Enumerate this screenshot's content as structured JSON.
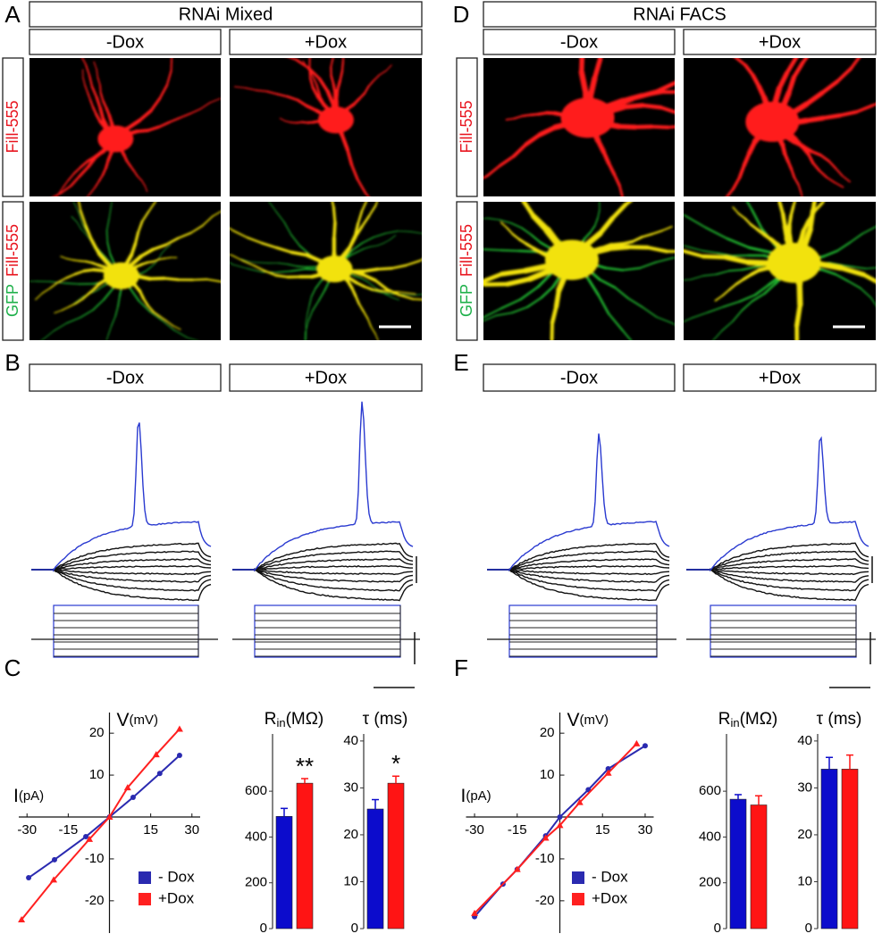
{
  "figure": {
    "panel_labels": [
      "A",
      "B",
      "C",
      "D",
      "E",
      "F"
    ],
    "left_header": "RNAi Mixed",
    "right_header": "RNAi FACS",
    "conditions": [
      "-Dox",
      "+Dox"
    ],
    "row_labels": {
      "fill": "Fill-555",
      "gfp": "GFP"
    }
  },
  "chart_data": [
    {
      "type": "scatter",
      "x_label": [
        "I",
        "(pA)"
      ],
      "y_label": [
        "V",
        "(mV)"
      ],
      "xlim": [
        -33,
        33
      ],
      "ylim": [
        -26,
        26
      ],
      "xticks": [
        -30,
        -15,
        15,
        30
      ],
      "yticks": [
        -20,
        -10,
        10,
        20
      ],
      "series": [
        {
          "name": "- Dox",
          "color": "#2a2ab0",
          "marker": "circle",
          "x": [
            -29.4,
            -20,
            -8.6,
            0,
            8.6,
            18.3,
            25.5
          ],
          "values": [
            -14.5,
            -10.2,
            -4.7,
            0,
            4.7,
            10.4,
            14.7
          ]
        },
        {
          "name": "+Dox",
          "color": "#ff2020",
          "marker": "triangle",
          "x": [
            -32,
            -20.3,
            -7.3,
            0,
            6.6,
            17,
            25.5
          ],
          "values": [
            -24.5,
            -15,
            -5.3,
            0,
            7,
            14.9,
            21
          ]
        }
      ]
    },
    {
      "type": "bar",
      "title": [
        "R",
        "in",
        "(MΩ)"
      ],
      "values": [
        490,
        635
      ],
      "errors": [
        35,
        20
      ],
      "colors": [
        "#0c0ccc",
        "#ff1414"
      ],
      "value_annotations": [
        null,
        "**"
      ],
      "ylim": [
        0,
        850
      ],
      "yticks": [
        0,
        200,
        400,
        600
      ]
    },
    {
      "type": "bar",
      "title": [
        "τ",
        " (ms)"
      ],
      "values": [
        25.5,
        31
      ],
      "errors": [
        2,
        1.5
      ],
      "colors": [
        "#0c0ccc",
        "#ff1414"
      ],
      "value_annotations": [
        null,
        "*"
      ],
      "ylim": [
        0,
        41.5
      ],
      "yticks": [
        0,
        10,
        20,
        30,
        40
      ]
    },
    {
      "type": "scatter",
      "x_label": [
        "I",
        "(pA)"
      ],
      "y_label": [
        "V",
        "(mV)"
      ],
      "xlim": [
        -33,
        33
      ],
      "ylim": [
        -26,
        26
      ],
      "xticks": [
        -30,
        -15,
        15,
        30
      ],
      "yticks": [
        -20,
        -10,
        10,
        20
      ],
      "series": [
        {
          "name": "- Dox",
          "color": "#2a2ab0",
          "marker": "circle",
          "x": [
            -30,
            -20,
            -15,
            -5,
            0,
            10,
            17,
            30
          ],
          "values": [
            -23.8,
            -16,
            -12.5,
            -4.5,
            0,
            6.5,
            11.5,
            17
          ]
        },
        {
          "name": "+Dox",
          "color": "#ff2020",
          "marker": "triangle",
          "x": [
            -30,
            -15,
            -5,
            0,
            7,
            17,
            27
          ],
          "values": [
            -23,
            -12.5,
            -5,
            -2,
            3.5,
            10.5,
            17.5
          ]
        }
      ]
    },
    {
      "type": "bar",
      "title": [
        "R",
        "in",
        "(MΩ)"
      ],
      "values": [
        565,
        540
      ],
      "errors": [
        20,
        40
      ],
      "colors": [
        "#0c0ccc",
        "#ff1414"
      ],
      "ylim": [
        0,
        850
      ],
      "yticks": [
        0,
        200,
        400,
        600
      ]
    },
    {
      "type": "bar",
      "title": [
        "τ",
        " (ms)"
      ],
      "values": [
        34,
        34
      ],
      "errors": [
        2.5,
        3
      ],
      "colors": [
        "#0c0ccc",
        "#ff1414"
      ],
      "ylim": [
        0,
        41.5
      ],
      "yticks": [
        0,
        10,
        20,
        30,
        40
      ]
    }
  ]
}
